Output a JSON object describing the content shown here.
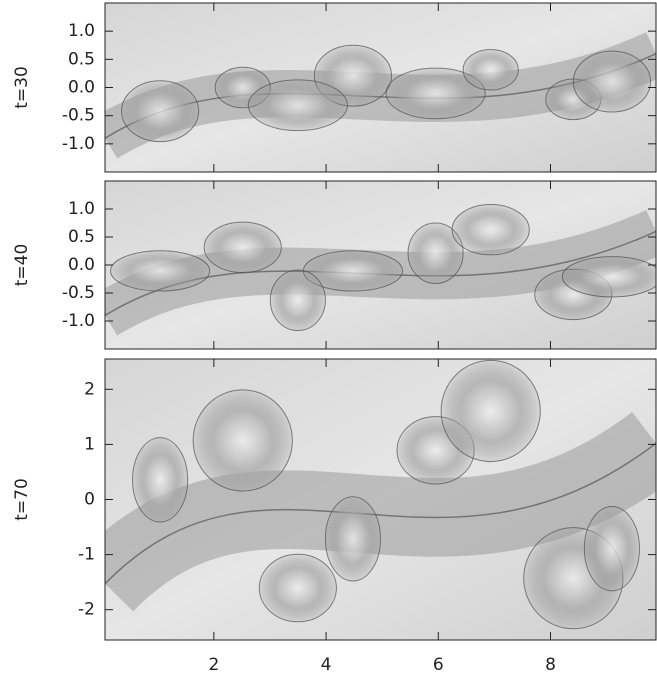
{
  "chart_data": [
    {
      "type": "image",
      "ylabel": "t=30",
      "ylim": [
        -1.5,
        1.5
      ],
      "yticks": [
        {
          "value": -1,
          "label": "-1.0"
        },
        -0.5,
        {
          "value": 0,
          "label": "0.0"
        },
        0.5,
        {
          "value": 1,
          "label": "1.0"
        }
      ]
    },
    {
      "type": "image",
      "ylabel": "t=40",
      "ylim": [
        -1.5,
        1.5
      ],
      "yticks": [
        {
          "value": -1,
          "label": "-1.0"
        },
        -0.5,
        {
          "value": 0,
          "label": "0.0"
        },
        0.5,
        {
          "value": 1,
          "label": "1.0"
        }
      ]
    },
    {
      "type": "image",
      "ylabel": "t=70",
      "ylim": [
        -2.55,
        2.55
      ],
      "yticks": [
        -2,
        -1,
        0,
        1,
        2
      ],
      "xlim": [
        0.06,
        9.88
      ],
      "xticks": [
        2,
        4,
        6,
        8
      ]
    }
  ]
}
